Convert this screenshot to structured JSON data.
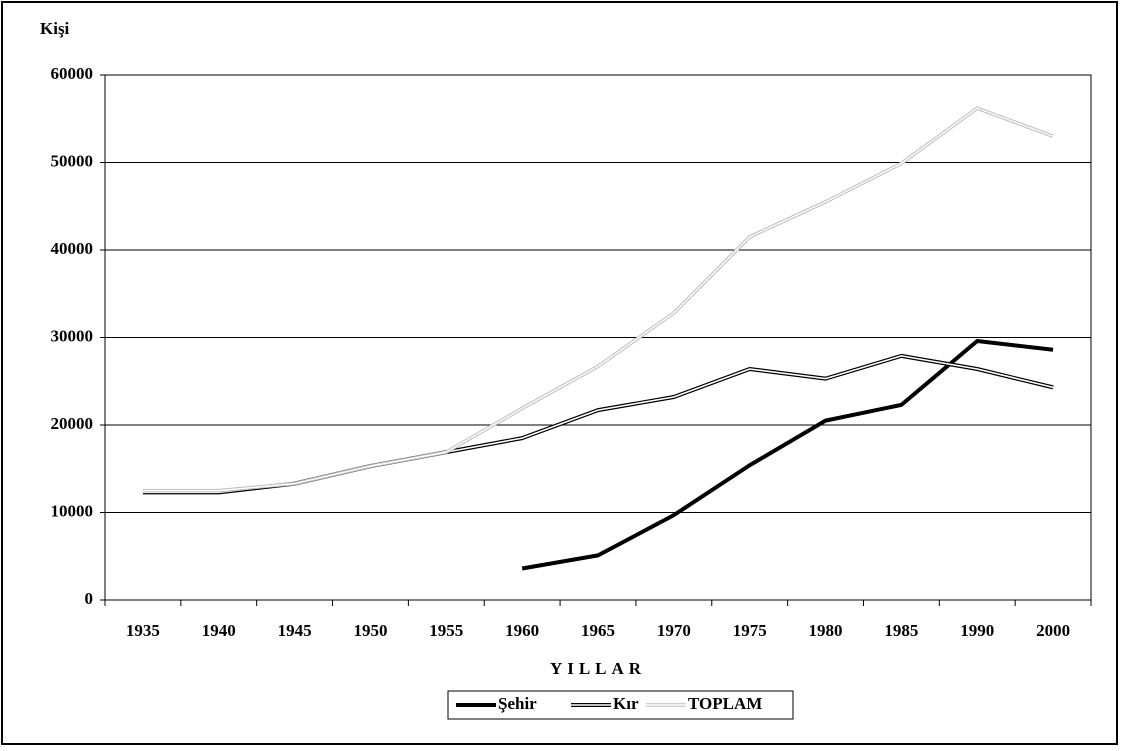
{
  "chart_data": {
    "type": "line",
    "y_label": "Kişi",
    "x_label": "YILLAR",
    "categories": [
      "1935",
      "1940",
      "1945",
      "1950",
      "1955",
      "1960",
      "1965",
      "1970",
      "1975",
      "1980",
      "1985",
      "1990",
      "2000"
    ],
    "series": [
      {
        "name": "Şehir",
        "color": "#000000",
        "values": [
          null,
          null,
          null,
          null,
          null,
          3600,
          5100,
          9700,
          15400,
          20500,
          22300,
          29600,
          28600
        ]
      },
      {
        "name": "Kır",
        "color": "#000000",
        "values": [
          12300,
          12300,
          13300,
          15300,
          16900,
          18500,
          21700,
          23200,
          26400,
          25300,
          27900,
          26400,
          24300
        ]
      },
      {
        "name": "TOPLAM",
        "color": "#bdbdbd",
        "values": [
          12500,
          12500,
          13300,
          15300,
          16900,
          21900,
          26700,
          32800,
          41500,
          45500,
          49900,
          56200,
          53000
        ]
      }
    ],
    "ylim": [
      0,
      60000
    ],
    "yticks": [
      0,
      10000,
      20000,
      30000,
      40000,
      50000,
      60000
    ],
    "grid": true
  }
}
